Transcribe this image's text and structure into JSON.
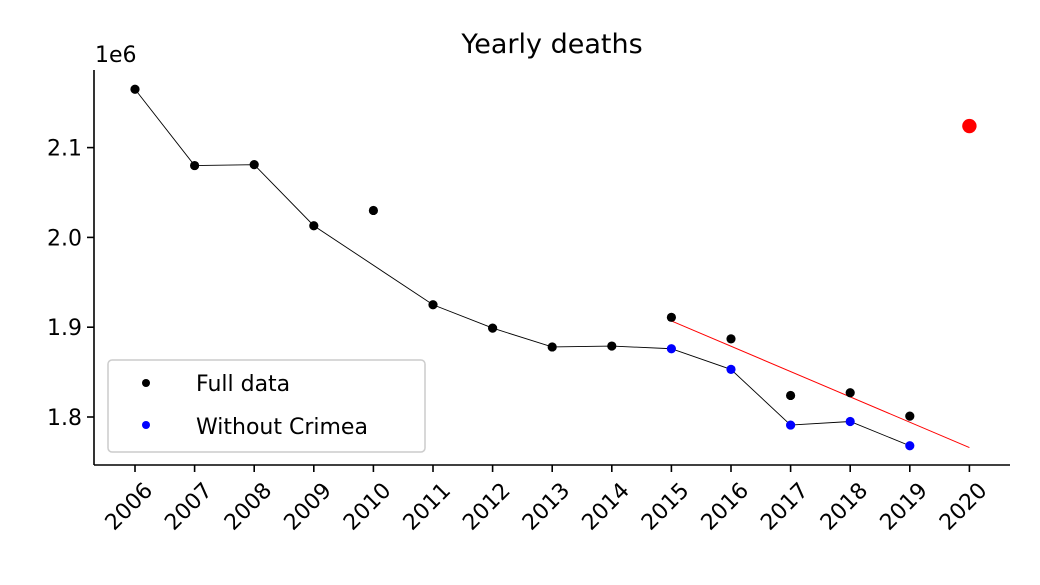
{
  "chart_data": {
    "type": "scatter",
    "title": "Yearly deaths",
    "xlabel": "",
    "ylabel": "",
    "y_offset_label": "1e6",
    "categories": [
      "2006",
      "2007",
      "2008",
      "2009",
      "2010",
      "2011",
      "2012",
      "2013",
      "2014",
      "2015",
      "2016",
      "2017",
      "2018",
      "2019",
      "2020"
    ],
    "ylim": [
      1.745,
      2.185
    ],
    "yticks": [
      1.8,
      1.9,
      2.0,
      2.1
    ],
    "ytick_labels": [
      "1.8",
      "1.9",
      "2.0",
      "2.1"
    ],
    "series": [
      {
        "name": "Full data",
        "color": "#000000",
        "x": [
          "2006",
          "2007",
          "2008",
          "2009",
          "2010",
          "2011",
          "2012",
          "2013",
          "2014",
          "2015",
          "2016",
          "2017",
          "2018",
          "2019"
        ],
        "values": [
          2.165,
          2.08,
          2.081,
          2.013,
          2.03,
          1.925,
          1.899,
          1.878,
          1.879,
          1.911,
          1.887,
          1.824,
          1.827,
          1.801
        ]
      },
      {
        "name": "Without Crimea",
        "color": "#0000ff",
        "x": [
          "2015",
          "2016",
          "2017",
          "2018",
          "2019"
        ],
        "values": [
          1.876,
          1.853,
          1.791,
          1.795,
          1.768
        ]
      }
    ],
    "connecting_line": {
      "color": "#000000",
      "x": [
        "2006",
        "2007",
        "2008",
        "2009",
        "2011",
        "2012",
        "2013",
        "2014",
        "2015",
        "2016",
        "2017",
        "2018",
        "2019"
      ],
      "values": [
        2.165,
        2.08,
        2.081,
        2.013,
        1.925,
        1.899,
        1.878,
        1.879,
        1.876,
        1.853,
        1.791,
        1.795,
        1.768
      ]
    },
    "trend_line": {
      "color": "#ff0000",
      "x": [
        "2015",
        "2020"
      ],
      "values": [
        1.907,
        1.766
      ]
    },
    "highlight_point": {
      "color": "#ff0000",
      "x": "2020",
      "value": 2.124
    },
    "grid": false,
    "legend_position": "lower-left"
  }
}
